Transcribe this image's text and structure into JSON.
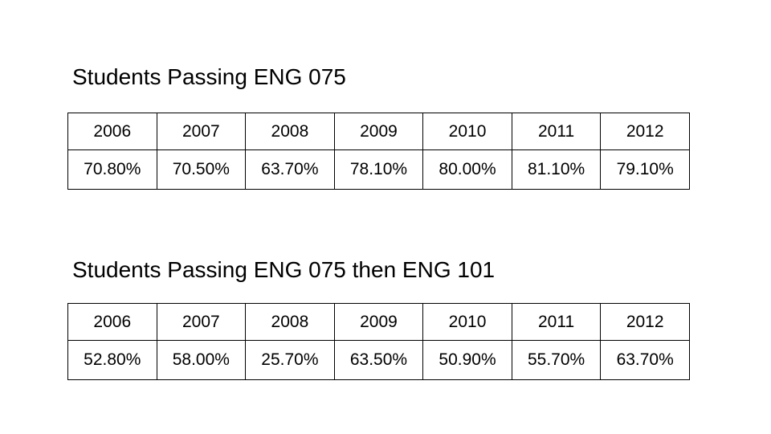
{
  "sections": [
    {
      "title": "Students Passing ENG 075",
      "table": {
        "rows": [
          [
            "2006",
            "2007",
            "2008",
            "2009",
            "2010",
            "2011",
            "2012"
          ],
          [
            "70.80%",
            "70.50%",
            "63.70%",
            "78.10%",
            "80.00%",
            "81.10%",
            "79.10%"
          ]
        ]
      }
    },
    {
      "title": "Students Passing ENG 075 then ENG 101",
      "table": {
        "rows": [
          [
            "2006",
            "2007",
            "2008",
            "2009",
            "2010",
            "2011",
            "2012"
          ],
          [
            "52.80%",
            "58.00%",
            "25.70%",
            "63.50%",
            "50.90%",
            "55.70%",
            "63.70%"
          ]
        ]
      }
    }
  ]
}
